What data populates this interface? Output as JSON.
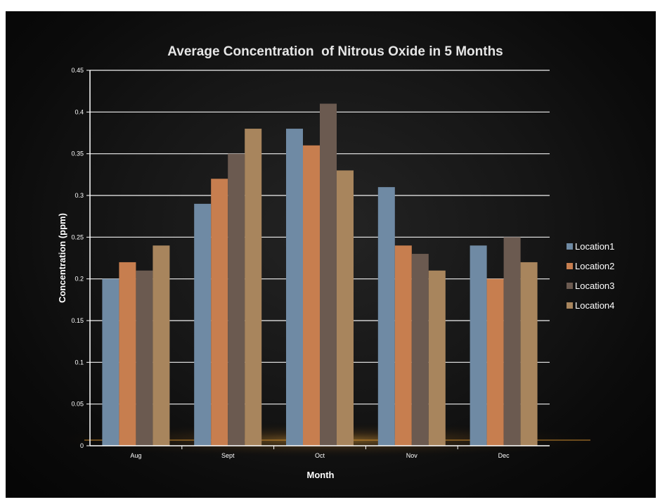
{
  "chart_data": {
    "type": "bar",
    "title": "Average Concentration  of Nitrous Oxide in 5 Months",
    "xlabel": "Month",
    "ylabel": "Concentration (ppm)",
    "categories": [
      "Aug",
      "Sept",
      "Oct",
      "Nov",
      "Dec"
    ],
    "ylim": [
      0,
      0.45
    ],
    "yticks": [
      "0",
      "0.05",
      "0.1",
      "0.15",
      "0.2",
      "0.25",
      "0.3",
      "0.35",
      "0.4",
      "0.45"
    ],
    "grid": true,
    "legend": "right",
    "series": [
      {
        "name": "Location1",
        "color": "#6f8aa4",
        "values": [
          0.2,
          0.29,
          0.38,
          0.31,
          0.24
        ]
      },
      {
        "name": "Location2",
        "color": "#c77e4f",
        "values": [
          0.22,
          0.32,
          0.36,
          0.24,
          0.2
        ]
      },
      {
        "name": "Location3",
        "color": "#6b5a50",
        "values": [
          0.21,
          0.35,
          0.41,
          0.23,
          0.25
        ]
      },
      {
        "name": "Location4",
        "color": "#a8855d",
        "values": [
          0.24,
          0.38,
          0.33,
          0.21,
          0.22
        ]
      }
    ]
  }
}
